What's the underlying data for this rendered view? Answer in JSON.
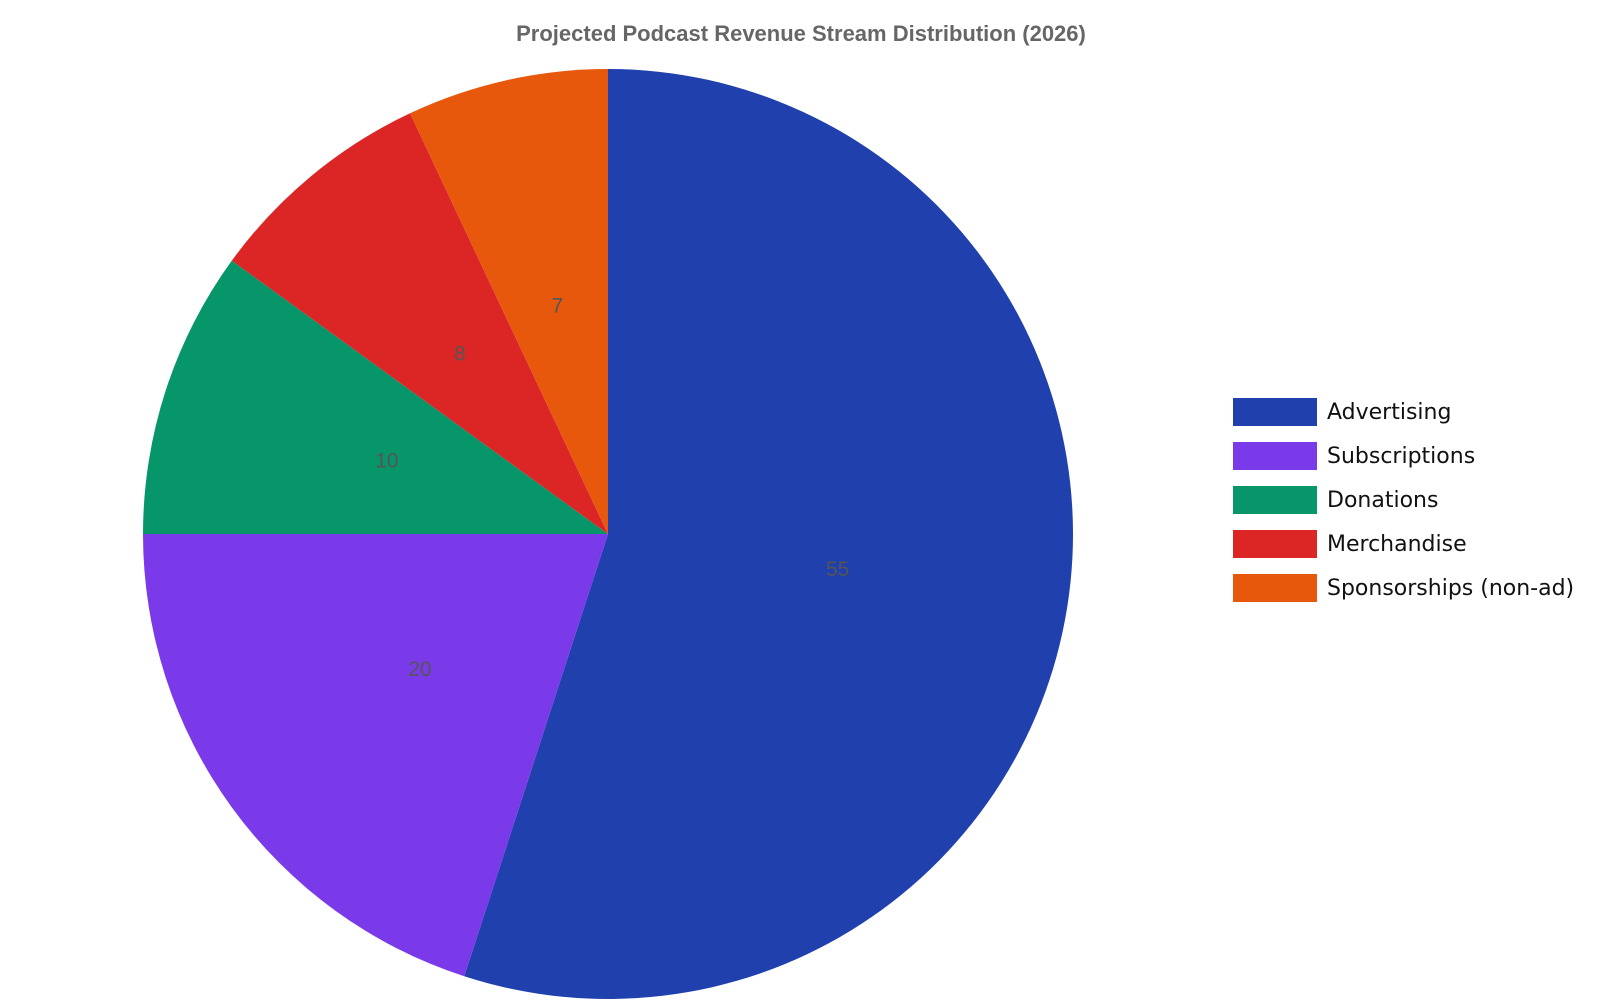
{
  "chart_data": {
    "type": "pie",
    "title": "Projected Podcast Revenue Stream Distribution (2026)",
    "categories": [
      "Advertising",
      "Subscriptions",
      "Donations",
      "Merchandise",
      "Sponsorships (non-ad)"
    ],
    "values": [
      55,
      20,
      10,
      8,
      7
    ],
    "colors": [
      "#1f40ad",
      "#7a3aea",
      "#06966a",
      "#dc2626",
      "#e8580c"
    ],
    "legend": "right"
  }
}
